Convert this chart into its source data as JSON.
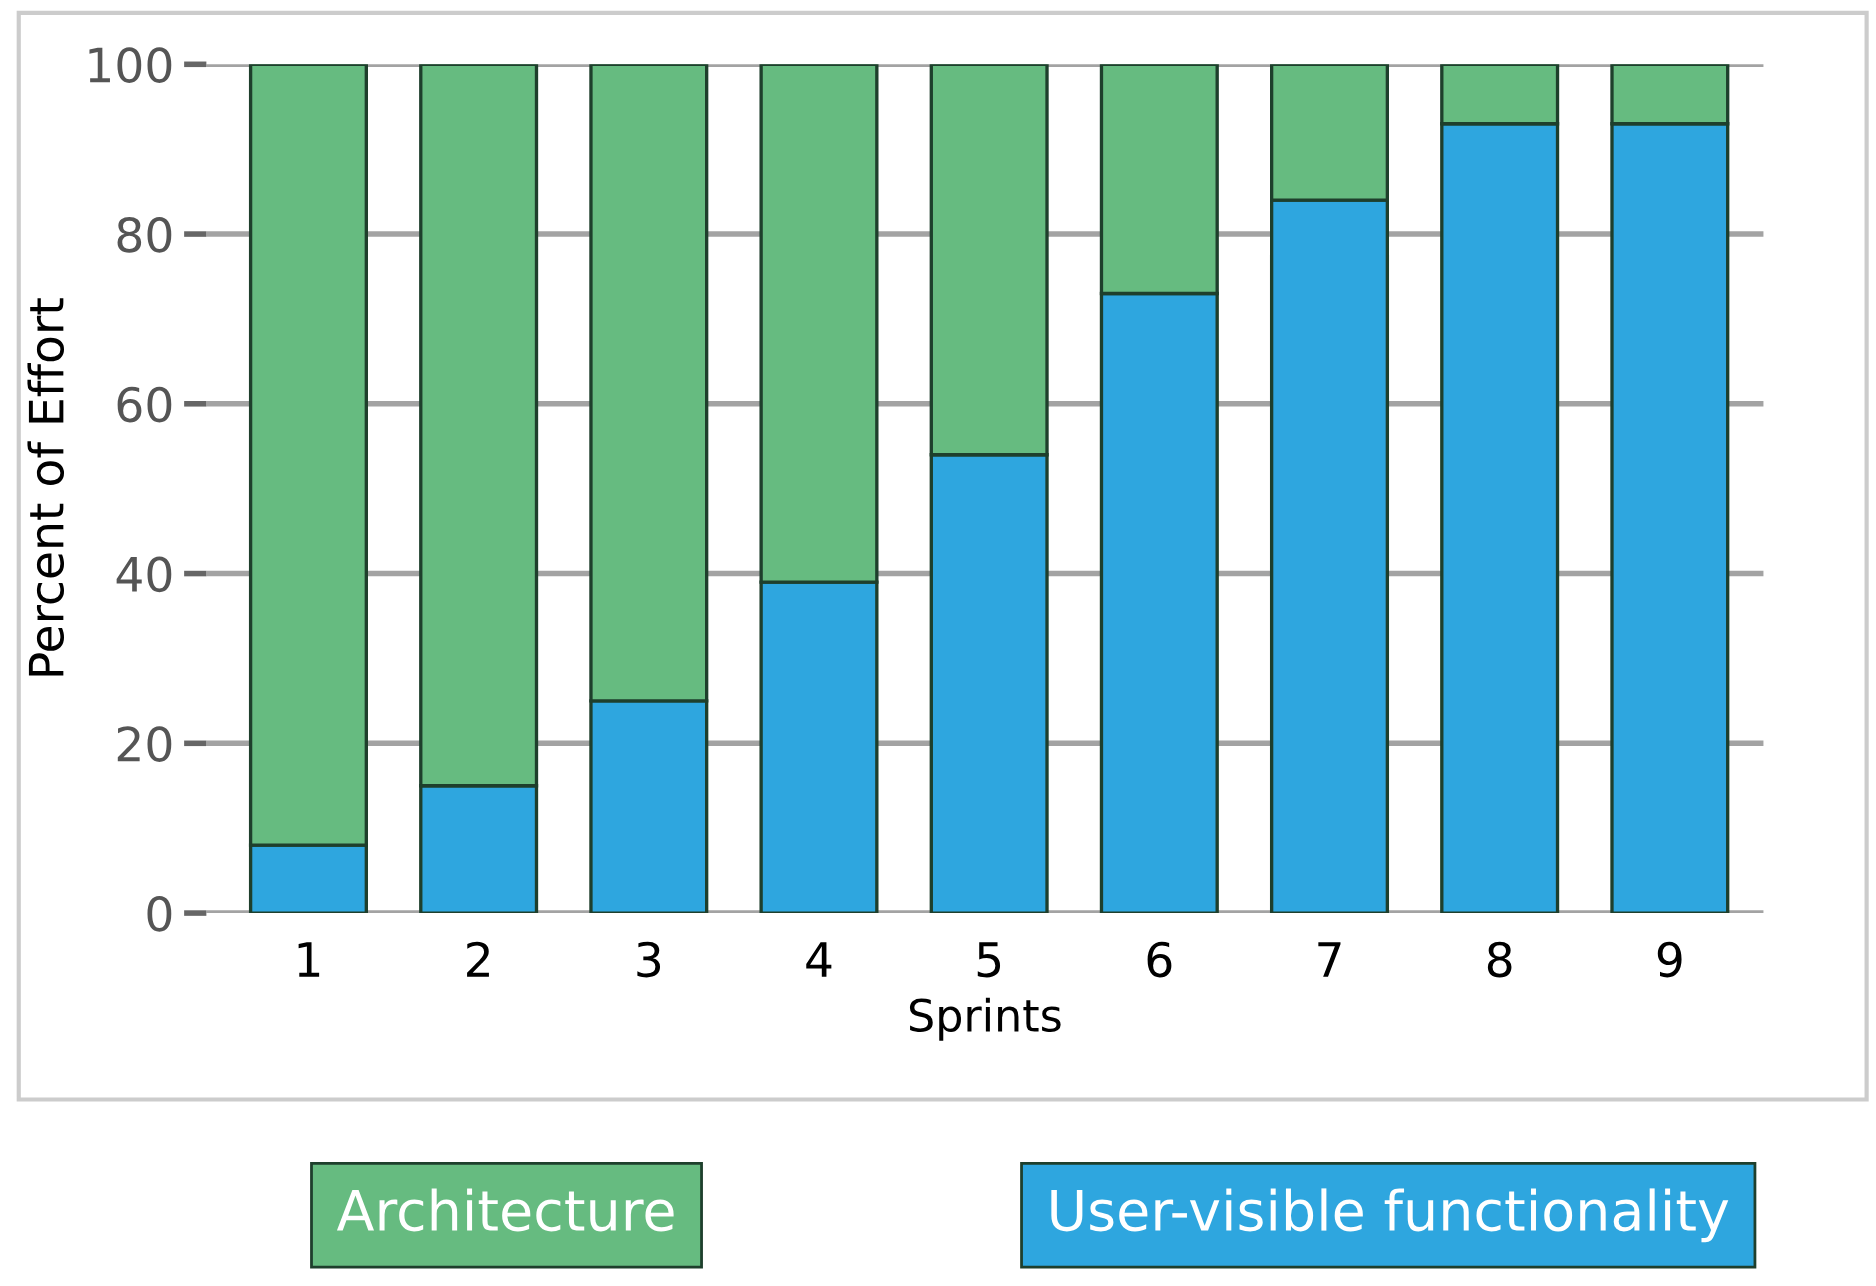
{
  "chart_data": {
    "type": "bar",
    "stacked": true,
    "xlabel": "Sprints",
    "ylabel": "Percent of Effort",
    "categories": [
      "1",
      "2",
      "3",
      "4",
      "5",
      "6",
      "7",
      "8",
      "9"
    ],
    "series": [
      {
        "name": "User-visible functionality",
        "color": "#2ea6df",
        "values": [
          8,
          15,
          25,
          39,
          54,
          73,
          84,
          93,
          93
        ]
      },
      {
        "name": "Architecture",
        "color": "#66bb80",
        "values": [
          92,
          85,
          75,
          61,
          46,
          27,
          16,
          7,
          7
        ]
      }
    ],
    "ylim": [
      0,
      100
    ],
    "yticks": [
      0,
      20,
      40,
      60,
      80,
      100
    ],
    "grid": "y",
    "legend": "bottom"
  }
}
